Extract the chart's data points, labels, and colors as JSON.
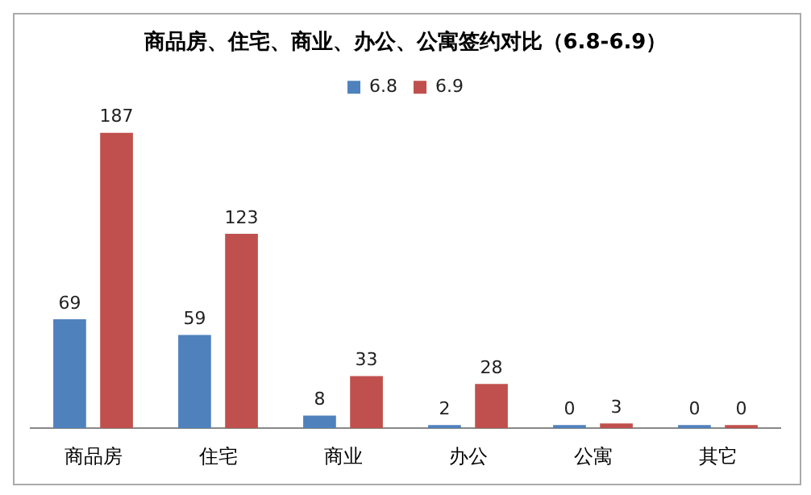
{
  "chart_data": {
    "type": "bar",
    "title": "商品房、住宅、商业、办公、公寓签约对比（6.8-6.9）",
    "categories": [
      "商品房",
      "住宅",
      "商业",
      "办公",
      "公寓",
      "其它"
    ],
    "series": [
      {
        "name": "6.8",
        "color": "#4f81bd",
        "values": [
          69,
          59,
          8,
          2,
          0,
          0
        ]
      },
      {
        "name": "6.9",
        "color": "#c0504d",
        "values": [
          187,
          123,
          33,
          28,
          3,
          0
        ]
      }
    ],
    "data_labels": true,
    "legend": "top",
    "grid": false,
    "tick_labels": "x"
  }
}
